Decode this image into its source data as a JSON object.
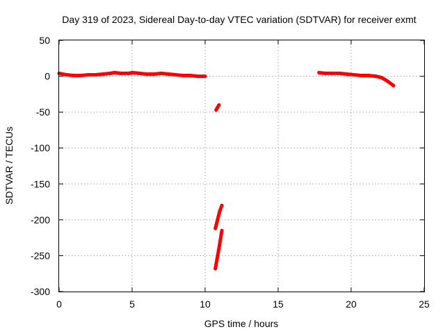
{
  "chart_data": {
    "type": "scatter",
    "title": "Day 319 of 2023, Sidereal Day-to-day VTEC variation (SDTVAR) for receiver exmt",
    "xlabel": "GPS time / hours",
    "ylabel": "SDTVAR / TECUs",
    "xlim": [
      0,
      25
    ],
    "ylim": [
      -300,
      50
    ],
    "xticks": [
      0,
      5,
      10,
      15,
      20,
      25
    ],
    "yticks": [
      50,
      0,
      -50,
      -100,
      -150,
      -200,
      -250,
      -300
    ],
    "grid": true,
    "series": [
      {
        "name": "SDTVAR",
        "color": "#ff0000",
        "segments": [
          [
            [
              0.0,
              4
            ],
            [
              0.5,
              2
            ],
            [
              1.0,
              1
            ],
            [
              1.5,
              1
            ],
            [
              2.0,
              2
            ],
            [
              2.5,
              2
            ],
            [
              3.0,
              3
            ],
            [
              3.5,
              4
            ],
            [
              3.8,
              5
            ],
            [
              4.2,
              4
            ],
            [
              4.8,
              4
            ],
            [
              5.0,
              5
            ],
            [
              5.5,
              4
            ],
            [
              6.0,
              3
            ],
            [
              6.5,
              3
            ],
            [
              7.0,
              4
            ],
            [
              7.5,
              3
            ],
            [
              8.0,
              2
            ],
            [
              8.5,
              1
            ],
            [
              9.0,
              1
            ],
            [
              9.5,
              0
            ],
            [
              10.0,
              0
            ]
          ],
          [
            [
              10.75,
              -47
            ],
            [
              10.95,
              -40
            ]
          ],
          [
            [
              10.7,
              -212
            ],
            [
              11.0,
              -188
            ],
            [
              11.15,
              -180
            ]
          ],
          [
            [
              10.7,
              -268
            ],
            [
              10.95,
              -240
            ],
            [
              11.15,
              -215
            ]
          ],
          [
            [
              17.8,
              5
            ],
            [
              18.2,
              4
            ],
            [
              18.7,
              4
            ],
            [
              19.2,
              4
            ],
            [
              19.7,
              3
            ],
            [
              20.2,
              2
            ],
            [
              20.7,
              1
            ],
            [
              21.2,
              1
            ],
            [
              21.7,
              0
            ],
            [
              22.1,
              -2
            ],
            [
              22.5,
              -7
            ],
            [
              22.9,
              -13
            ]
          ]
        ]
      }
    ]
  }
}
